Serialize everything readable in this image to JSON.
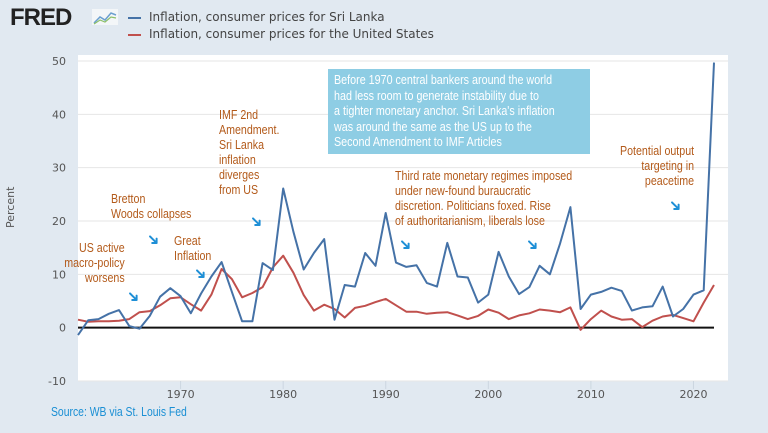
{
  "logo": "FRED",
  "colors": {
    "sri_lanka": "#4572a7",
    "united_states": "#c0504d",
    "annotation_text": "#b35a1a",
    "arrow": "#1e8fd6",
    "note_box": "#8ecde4",
    "source": "#1a8fd4"
  },
  "annotations": {
    "us_active": [
      "US active",
      "macro-policy",
      "worsens"
    ],
    "bretton": [
      "Bretton",
      "Woods collapses"
    ],
    "great_inflation": [
      "Great",
      "Inflation"
    ],
    "imf": [
      "IMF 2nd",
      "Amendment.",
      "Sri Lanka",
      "inflation",
      "diverges",
      "from US"
    ],
    "third_rate": [
      "Third rate monetary regimes imposed",
      "under new-found buraucratic",
      "discretion. Politicians foxed. Rise",
      "of authoritarianism, liberals lose"
    ],
    "potential": [
      "Potential output",
      "targeting in",
      "peacetime"
    ],
    "note_box": [
      "Before 1970 central bankers around the world",
      "had less room to generate instability due to",
      "a tighter monetary anchor. Sri Lanka's inflation",
      "was around the same as the US up to the",
      "Second Amendment to IMF Articles"
    ]
  },
  "source": "Source: WB via St. Louis Fed",
  "chart_data": {
    "type": "line",
    "title": "",
    "xlabel": "",
    "ylabel": "Percent",
    "xlim": [
      1960,
      2022
    ],
    "ylim": [
      -10,
      50
    ],
    "yticks": [
      -10,
      0,
      10,
      20,
      30,
      40,
      50
    ],
    "xticks": [
      1970,
      1980,
      1990,
      2000,
      2010,
      2020
    ],
    "grid": true,
    "legend": "top",
    "x": [
      1960,
      1961,
      1962,
      1963,
      1964,
      1965,
      1966,
      1967,
      1968,
      1969,
      1970,
      1971,
      1972,
      1973,
      1974,
      1975,
      1976,
      1977,
      1978,
      1979,
      1980,
      1981,
      1982,
      1983,
      1984,
      1985,
      1986,
      1987,
      1988,
      1989,
      1990,
      1991,
      1992,
      1993,
      1994,
      1995,
      1996,
      1997,
      1998,
      1999,
      2000,
      2001,
      2002,
      2003,
      2004,
      2005,
      2006,
      2007,
      2008,
      2009,
      2010,
      2011,
      2012,
      2013,
      2014,
      2015,
      2016,
      2017,
      2018,
      2019,
      2020,
      2021,
      2022
    ],
    "series": [
      {
        "name": "Inflation, consumer prices for Sri Lanka",
        "values": [
          -1.4,
          1.4,
          1.6,
          2.6,
          3.3,
          0.3,
          -0.2,
          2.2,
          5.8,
          7.4,
          5.9,
          2.7,
          6.4,
          9.6,
          12.3,
          6.7,
          1.2,
          1.2,
          12.1,
          10.8,
          26.1,
          18.0,
          10.9,
          14.0,
          16.6,
          1.5,
          8.0,
          7.7,
          14.0,
          11.6,
          21.5,
          12.2,
          11.4,
          11.7,
          8.4,
          7.7,
          15.9,
          9.6,
          9.4,
          4.7,
          6.2,
          14.2,
          9.6,
          6.3,
          7.6,
          11.6,
          10.0,
          15.8,
          22.6,
          3.5,
          6.2,
          6.7,
          7.5,
          6.9,
          3.2,
          3.8,
          4.0,
          7.7,
          2.1,
          3.5,
          6.2,
          7.0,
          49.7
        ]
      },
      {
        "name": "Inflation, consumer prices for the United States",
        "values": [
          1.5,
          1.1,
          1.2,
          1.2,
          1.3,
          1.6,
          2.9,
          3.1,
          4.2,
          5.5,
          5.7,
          4.4,
          3.2,
          6.2,
          11.0,
          9.1,
          5.7,
          6.5,
          7.6,
          11.3,
          13.5,
          10.3,
          6.1,
          3.2,
          4.3,
          3.5,
          1.9,
          3.7,
          4.1,
          4.8,
          5.4,
          4.2,
          3.0,
          3.0,
          2.6,
          2.8,
          2.9,
          2.3,
          1.6,
          2.2,
          3.4,
          2.8,
          1.6,
          2.3,
          2.7,
          3.4,
          3.2,
          2.9,
          3.8,
          -0.4,
          1.6,
          3.2,
          2.1,
          1.5,
          1.6,
          0.1,
          1.3,
          2.1,
          2.4,
          1.8,
          1.2,
          4.7,
          8.0
        ]
      }
    ]
  }
}
